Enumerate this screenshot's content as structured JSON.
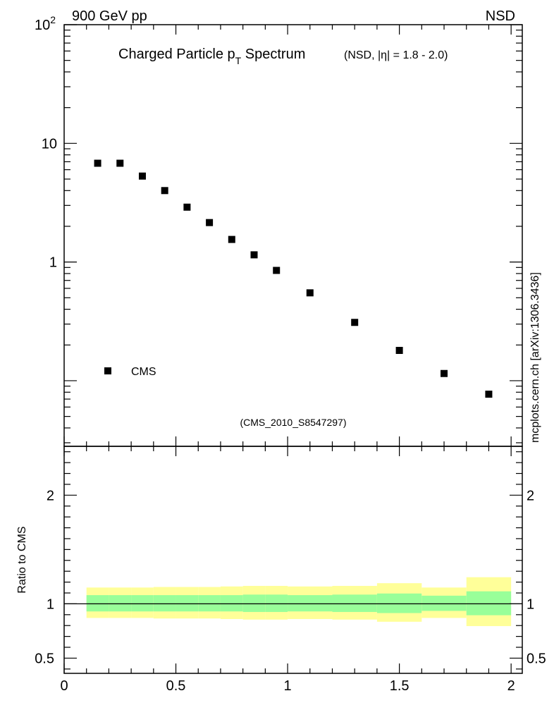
{
  "header": {
    "energy_label": "900 GeV pp",
    "process_label": "NSD"
  },
  "side_label": "mcplots.cern.ch [arXiv:1306.3436]",
  "chart_data": [
    {
      "type": "scatter",
      "title": "Charged Particle p",
      "title_sub": "T",
      "title_main_tail": " Spectrum",
      "title_extra": "(NSD, |η| = 1.8 - 2.0)",
      "analysis_id": "(CMS_2010_S8547297)",
      "yscale": "log",
      "ylim": [
        0.028,
        100
      ],
      "xlim": [
        0,
        2.05
      ],
      "y_ticks": [
        {
          "value": 100,
          "base": "10",
          "exp": "2"
        },
        {
          "value": 10,
          "base": "10",
          "exp": ""
        },
        {
          "value": 1,
          "base": "1",
          "exp": ""
        }
      ],
      "legend": {
        "label": "CMS",
        "marker": "square",
        "position": "lower-left"
      },
      "series": [
        {
          "name": "CMS",
          "marker": "square",
          "color": "#000000",
          "x": [
            0.15,
            0.25,
            0.35,
            0.45,
            0.55,
            0.65,
            0.75,
            0.85,
            0.95,
            1.1,
            1.3,
            1.5,
            1.7,
            1.9
          ],
          "y": [
            6.8,
            6.8,
            5.3,
            4.0,
            2.9,
            2.15,
            1.55,
            1.15,
            0.85,
            0.55,
            0.31,
            0.18,
            0.115,
            0.077
          ]
        }
      ]
    },
    {
      "type": "ratio",
      "ylabel": "Ratio to CMS",
      "ylim": [
        0.36,
        2.45
      ],
      "xlim": [
        0,
        2.05
      ],
      "y_ticks": [
        {
          "value": 2,
          "label": "2"
        },
        {
          "value": 1,
          "label": "1"
        },
        {
          "value": 0.5,
          "label": "0.5"
        }
      ],
      "x_ticks": [
        {
          "value": 0,
          "label": "0"
        },
        {
          "value": 0.5,
          "label": "0.5"
        },
        {
          "value": 1,
          "label": "1"
        },
        {
          "value": 1.5,
          "label": "1.5"
        },
        {
          "value": 2,
          "label": "2"
        }
      ],
      "reference_line": 1,
      "bands": {
        "inner_color": "#99ff99",
        "outer_color": "#ffff99",
        "bins": [
          {
            "x_low": 0.1,
            "x_high": 0.2,
            "outer": [
              0.87,
              1.15
            ],
            "inner": [
              0.93,
              1.08
            ]
          },
          {
            "x_low": 0.2,
            "x_high": 0.3,
            "outer": [
              0.87,
              1.15
            ],
            "inner": [
              0.93,
              1.08
            ]
          },
          {
            "x_low": 0.3,
            "x_high": 0.4,
            "outer": [
              0.87,
              1.15
            ],
            "inner": [
              0.93,
              1.08
            ]
          },
          {
            "x_low": 0.4,
            "x_high": 0.5,
            "outer": [
              0.865,
              1.155
            ],
            "inner": [
              0.93,
              1.08
            ]
          },
          {
            "x_low": 0.5,
            "x_high": 0.6,
            "outer": [
              0.865,
              1.155
            ],
            "inner": [
              0.93,
              1.08
            ]
          },
          {
            "x_low": 0.6,
            "x_high": 0.7,
            "outer": [
              0.865,
              1.155
            ],
            "inner": [
              0.93,
              1.08
            ]
          },
          {
            "x_low": 0.7,
            "x_high": 0.8,
            "outer": [
              0.86,
              1.16
            ],
            "inner": [
              0.93,
              1.08
            ]
          },
          {
            "x_low": 0.8,
            "x_high": 0.9,
            "outer": [
              0.855,
              1.165
            ],
            "inner": [
              0.925,
              1.085
            ]
          },
          {
            "x_low": 0.9,
            "x_high": 1.0,
            "outer": [
              0.855,
              1.165
            ],
            "inner": [
              0.925,
              1.085
            ]
          },
          {
            "x_low": 1.0,
            "x_high": 1.2,
            "outer": [
              0.86,
              1.16
            ],
            "inner": [
              0.93,
              1.08
            ]
          },
          {
            "x_low": 1.2,
            "x_high": 1.4,
            "outer": [
              0.855,
              1.165
            ],
            "inner": [
              0.925,
              1.085
            ]
          },
          {
            "x_low": 1.4,
            "x_high": 1.6,
            "outer": [
              0.835,
              1.19
            ],
            "inner": [
              0.915,
              1.095
            ]
          },
          {
            "x_low": 1.6,
            "x_high": 1.8,
            "outer": [
              0.87,
              1.15
            ],
            "inner": [
              0.935,
              1.075
            ]
          },
          {
            "x_low": 1.8,
            "x_high": 2.0,
            "outer": [
              0.795,
              1.245
            ],
            "inner": [
              0.895,
              1.115
            ]
          }
        ]
      }
    }
  ]
}
